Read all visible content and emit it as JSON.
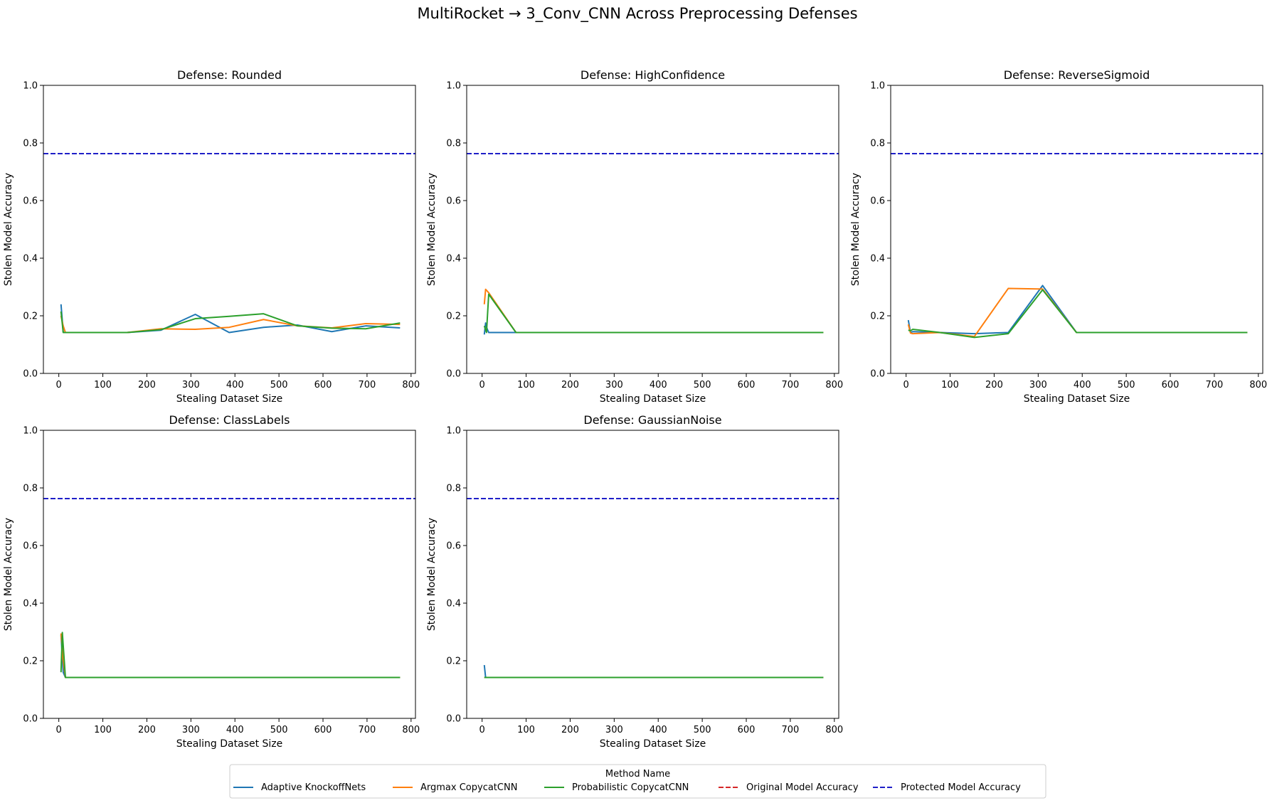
{
  "chart_data": {
    "type": "line",
    "title": "MultiRocket → 3_Conv_CNN Across Preprocessing Defenses",
    "xlabel": "Stealing Dataset Size",
    "ylabel": "Stolen Model Accuracy",
    "xlim": [
      -35,
      810
    ],
    "ylim": [
      0.0,
      1.0
    ],
    "xticks": [
      0,
      100,
      200,
      300,
      400,
      500,
      600,
      700,
      800
    ],
    "yticks": [
      0.0,
      0.2,
      0.4,
      0.6,
      0.8,
      1.0
    ],
    "xtick_labels": [
      "0",
      "100",
      "200",
      "300",
      "400",
      "500",
      "600",
      "700",
      "800"
    ],
    "ytick_labels": [
      "0.0",
      "0.2",
      "0.4",
      "0.6",
      "0.8",
      "1.0"
    ],
    "grid": false,
    "series_styles": [
      {
        "name": "Adaptive KnockoffNets",
        "color": "#1f77b4",
        "dash": "solid"
      },
      {
        "name": "Argmax CopycatCNN",
        "color": "#ff7f0e",
        "dash": "solid"
      },
      {
        "name": "Probabilistic CopycatCNN",
        "color": "#2ca02c",
        "dash": "solid"
      },
      {
        "name": "Original Model Accuracy",
        "color": "#d62728",
        "dash": "dashed"
      },
      {
        "name": "Protected Model Accuracy",
        "color": "#1f1fc8",
        "dash": "dashed"
      }
    ],
    "legend": {
      "title": "Method Name",
      "placement": "bottom-center",
      "entries": [
        "Adaptive KnockoffNets",
        "Argmax CopycatCNN",
        "Probabilistic CopycatCNN",
        "Original Model Accuracy",
        "Protected Model Accuracy"
      ]
    },
    "panels": [
      {
        "title": "Defense: Rounded",
        "protected_accuracy": 0.763,
        "series": [
          {
            "name": "Adaptive KnockoffNets",
            "x": [
              5,
              10,
              15,
              77,
              155,
              232,
              310,
              387,
              465,
              542,
              620,
              697,
              775
            ],
            "y": [
              0.24,
              0.143,
              0.142,
              0.142,
              0.142,
              0.15,
              0.205,
              0.142,
              0.16,
              0.168,
              0.145,
              0.165,
              0.158
            ]
          },
          {
            "name": "Argmax CopycatCNN",
            "x": [
              5,
              10,
              15,
              77,
              155,
              232,
              310,
              387,
              465,
              542,
              620,
              697,
              775
            ],
            "y": [
              0.2,
              0.165,
              0.142,
              0.142,
              0.142,
              0.155,
              0.153,
              0.16,
              0.187,
              0.165,
              0.158,
              0.173,
              0.17
            ]
          },
          {
            "name": "Probabilistic CopycatCNN",
            "x": [
              5,
              10,
              15,
              77,
              155,
              232,
              310,
              387,
              465,
              542,
              620,
              697,
              775
            ],
            "y": [
              0.215,
              0.142,
              0.142,
              0.142,
              0.142,
              0.152,
              0.19,
              0.198,
              0.207,
              0.165,
              0.157,
              0.155,
              0.175
            ]
          }
        ]
      },
      {
        "title": "Defense: HighConfidence",
        "protected_accuracy": 0.763,
        "series": [
          {
            "name": "Adaptive KnockoffNets",
            "x": [
              5,
              8,
              10,
              15,
              77,
              155,
              232,
              310,
              387,
              465,
              542,
              620,
              697,
              775
            ],
            "y": [
              0.135,
              0.175,
              0.16,
              0.142,
              0.142,
              0.142,
              0.142,
              0.142,
              0.142,
              0.142,
              0.142,
              0.142,
              0.142,
              0.142
            ]
          },
          {
            "name": "Argmax CopycatCNN",
            "x": [
              5,
              8,
              15,
              77,
              155,
              232,
              310,
              387,
              465,
              542,
              620,
              697,
              775
            ],
            "y": [
              0.24,
              0.292,
              0.28,
              0.142,
              0.142,
              0.142,
              0.142,
              0.142,
              0.142,
              0.142,
              0.142,
              0.142,
              0.142
            ]
          },
          {
            "name": "Probabilistic CopycatCNN",
            "x": [
              5,
              10,
              15,
              77,
              155,
              232,
              310,
              387,
              465,
              542,
              620,
              697,
              775
            ],
            "y": [
              0.165,
              0.142,
              0.275,
              0.142,
              0.142,
              0.142,
              0.142,
              0.142,
              0.142,
              0.142,
              0.142,
              0.142,
              0.142
            ]
          }
        ]
      },
      {
        "title": "Defense: ReverseSigmoid",
        "protected_accuracy": 0.763,
        "series": [
          {
            "name": "Adaptive KnockoffNets",
            "x": [
              5,
              10,
              15,
              77,
              155,
              232,
              310,
              387,
              465,
              542,
              620,
              697,
              775
            ],
            "y": [
              0.185,
              0.142,
              0.145,
              0.142,
              0.138,
              0.142,
              0.305,
              0.142,
              0.142,
              0.142,
              0.142,
              0.142,
              0.142
            ]
          },
          {
            "name": "Argmax CopycatCNN",
            "x": [
              5,
              10,
              15,
              77,
              155,
              232,
              310,
              387,
              465,
              542,
              620,
              697,
              775
            ],
            "y": [
              0.17,
              0.14,
              0.138,
              0.142,
              0.128,
              0.295,
              0.293,
              0.142,
              0.142,
              0.142,
              0.142,
              0.142,
              0.142
            ]
          },
          {
            "name": "Probabilistic CopycatCNN",
            "x": [
              5,
              10,
              15,
              77,
              155,
              232,
              310,
              387,
              465,
              542,
              620,
              697,
              775
            ],
            "y": [
              0.15,
              0.148,
              0.153,
              0.142,
              0.125,
              0.138,
              0.29,
              0.142,
              0.142,
              0.142,
              0.142,
              0.142,
              0.142
            ]
          }
        ]
      },
      {
        "title": "Defense: ClassLabels",
        "protected_accuracy": 0.763,
        "series": [
          {
            "name": "Adaptive KnockoffNets",
            "x": [
              5,
              10,
              15,
              77,
              155,
              232,
              310,
              387,
              465,
              542,
              620,
              697,
              775
            ],
            "y": [
              0.29,
              0.16,
              0.142,
              0.142,
              0.142,
              0.142,
              0.142,
              0.142,
              0.142,
              0.142,
              0.142,
              0.142,
              0.142
            ]
          },
          {
            "name": "Argmax CopycatCNN",
            "x": [
              5,
              10,
              15,
              77,
              155,
              232,
              310,
              387,
              465,
              542,
              620,
              697,
              775
            ],
            "y": [
              0.295,
              0.2,
              0.142,
              0.142,
              0.142,
              0.142,
              0.142,
              0.142,
              0.142,
              0.142,
              0.142,
              0.142,
              0.142
            ]
          },
          {
            "name": "Probabilistic CopycatCNN",
            "x": [
              5,
              8,
              15,
              77,
              155,
              232,
              310,
              387,
              465,
              542,
              620,
              697,
              775
            ],
            "y": [
              0.16,
              0.298,
              0.142,
              0.142,
              0.142,
              0.142,
              0.142,
              0.142,
              0.142,
              0.142,
              0.142,
              0.142,
              0.142
            ]
          }
        ]
      },
      {
        "title": "Defense: GaussianNoise",
        "protected_accuracy": 0.763,
        "series": [
          {
            "name": "Adaptive KnockoffNets",
            "x": [
              5,
              8,
              15,
              77,
              155,
              232,
              310,
              387,
              465,
              542,
              620,
              697,
              775
            ],
            "y": [
              0.185,
              0.142,
              0.142,
              0.142,
              0.142,
              0.142,
              0.142,
              0.142,
              0.142,
              0.142,
              0.142,
              0.142,
              0.142
            ]
          },
          {
            "name": "Argmax CopycatCNN",
            "x": [
              5,
              10,
              15,
              77,
              155,
              232,
              310,
              387,
              465,
              542,
              620,
              697,
              775
            ],
            "y": [
              0.142,
              0.142,
              0.142,
              0.142,
              0.142,
              0.142,
              0.142,
              0.142,
              0.142,
              0.142,
              0.142,
              0.142,
              0.142
            ]
          },
          {
            "name": "Probabilistic CopycatCNN",
            "x": [
              5,
              10,
              15,
              77,
              155,
              232,
              310,
              387,
              465,
              542,
              620,
              697,
              775
            ],
            "y": [
              0.142,
              0.142,
              0.142,
              0.142,
              0.142,
              0.142,
              0.142,
              0.142,
              0.142,
              0.142,
              0.142,
              0.142,
              0.142
            ]
          }
        ]
      }
    ]
  }
}
